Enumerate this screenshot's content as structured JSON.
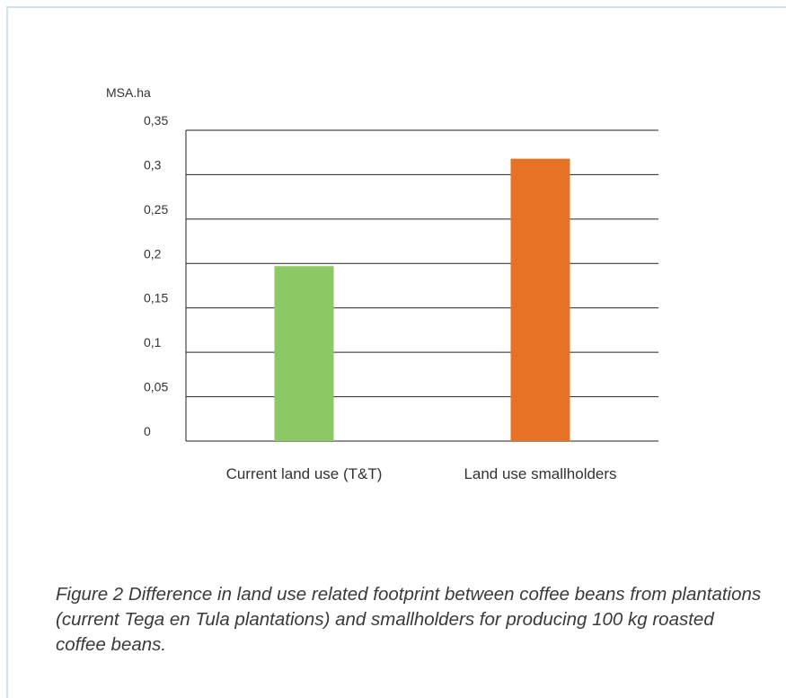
{
  "chart_data": {
    "type": "bar",
    "title": "",
    "ylabel": "MSA.ha",
    "xlabel": "",
    "categories": [
      "Current land use (T&T)",
      "Land use smallholders"
    ],
    "values": [
      0.197,
      0.318
    ],
    "ylim": [
      0,
      0.35
    ],
    "yticks": [
      0,
      0.05,
      0.1,
      0.15,
      0.2,
      0.25,
      0.3,
      0.35
    ],
    "ytick_labels": [
      "0",
      "0,05",
      "0,1",
      "0,15",
      "0,2",
      "0,25",
      "0,3",
      "0,35"
    ],
    "colors": [
      "#8cc864",
      "#e57225"
    ],
    "grid": true,
    "legend": "none"
  },
  "caption": "Figure 2 Difference in land use related footprint between coffee beans from plantations (current Tega en Tula plantations) and smallholders for producing 100 kg roasted coffee beans."
}
